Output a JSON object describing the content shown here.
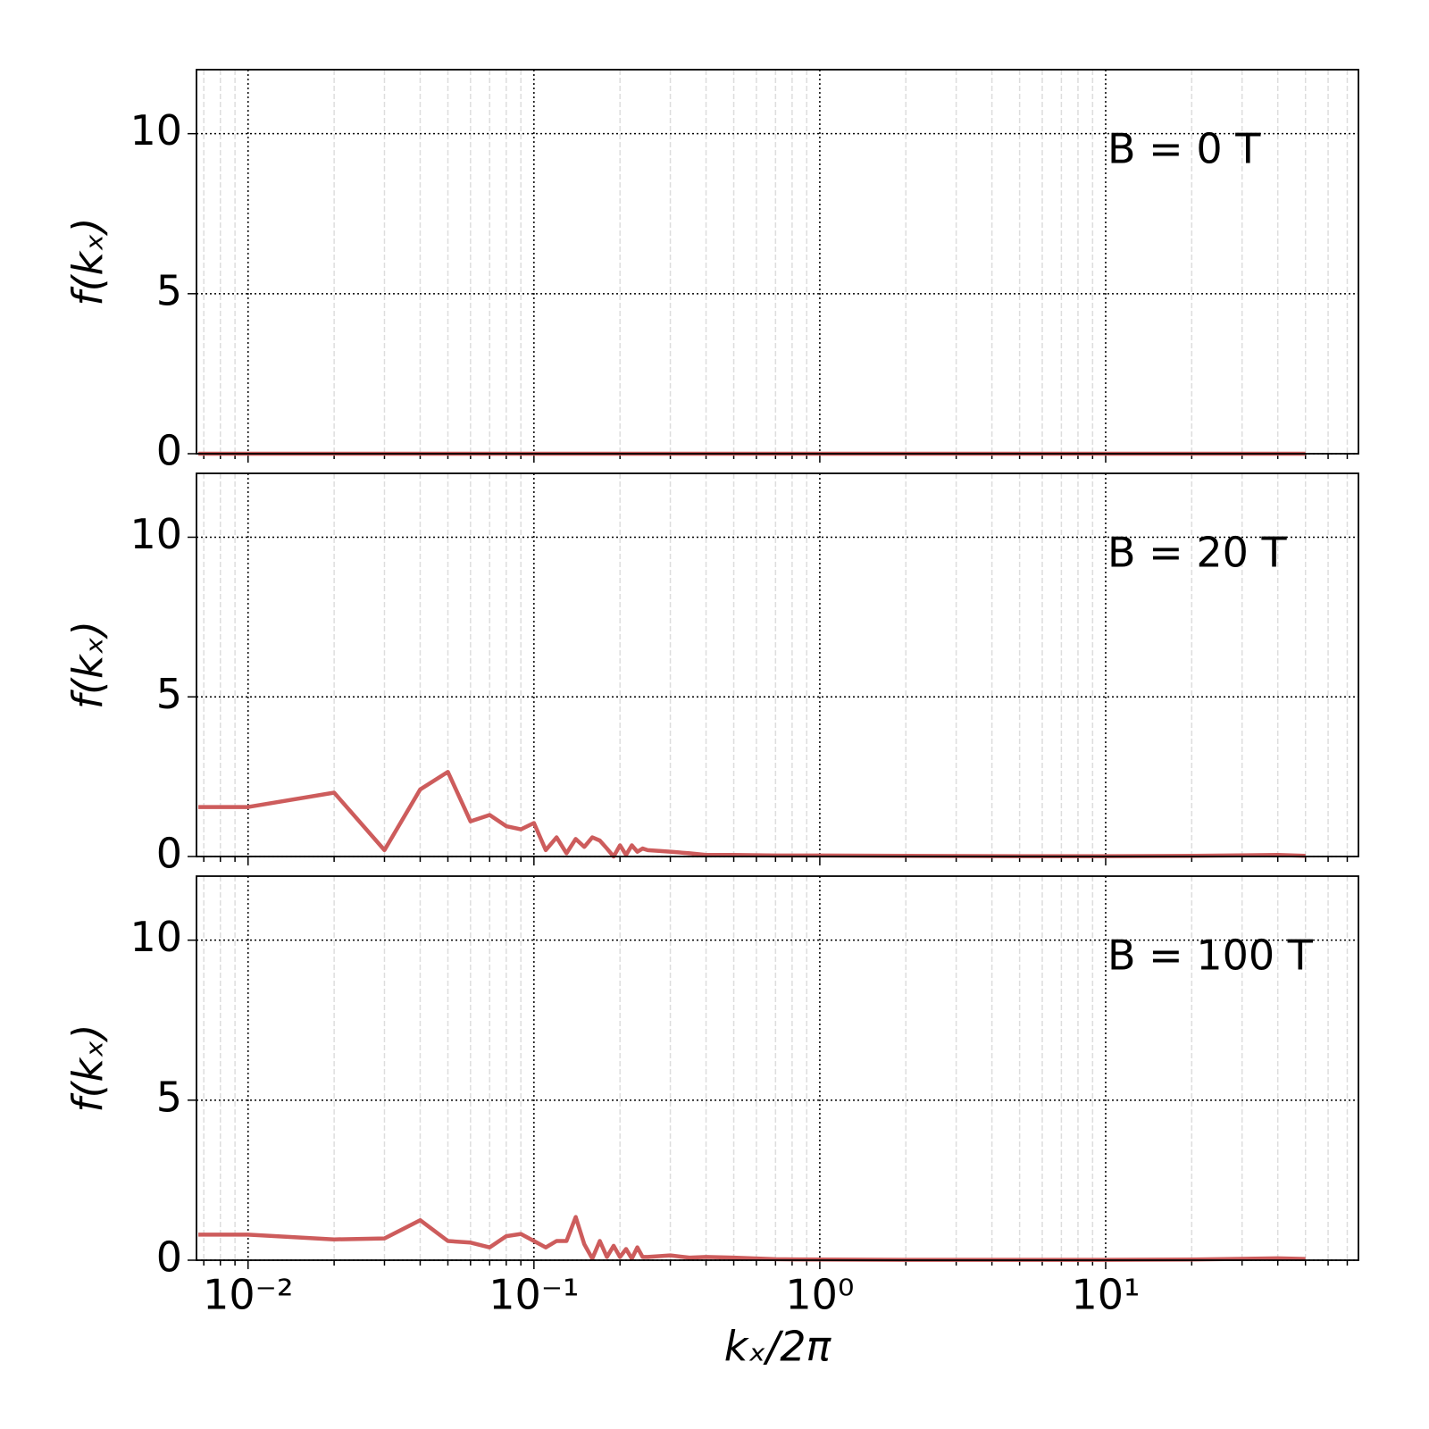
{
  "chart_data": [
    {
      "type": "line",
      "annotation": "B = 0 T",
      "ylabel": "f(kₓ)",
      "color": "#cd5c5c",
      "log_x": true,
      "grid": true,
      "minor_grid": true,
      "xlim": [
        0.0066,
        76.6
      ],
      "ylim": [
        0,
        12
      ],
      "yticks": [
        0,
        5,
        10
      ],
      "xticks": [
        0.01,
        0.1,
        1,
        10
      ],
      "x": [
        0.0067,
        0.01,
        0.02,
        0.03,
        0.04,
        0.05,
        0.06,
        0.07,
        0.08,
        0.09,
        0.1,
        0.11,
        0.12,
        0.13,
        0.14,
        0.15,
        0.16,
        0.17,
        0.18,
        0.19,
        0.2,
        0.21,
        0.22,
        0.23,
        0.24,
        0.25,
        0.3,
        0.35,
        0.4,
        0.5,
        0.7,
        1,
        2,
        5,
        10,
        20,
        40,
        50
      ],
      "values": [
        0,
        0,
        0,
        0,
        0,
        0,
        0,
        0,
        0,
        0,
        0,
        0,
        0,
        0,
        0,
        0,
        0,
        0,
        0,
        0,
        0,
        0,
        0,
        0,
        0,
        0,
        0,
        0,
        0,
        0,
        0,
        0,
        0,
        0,
        0,
        0,
        0,
        0
      ]
    },
    {
      "type": "line",
      "annotation": "B = 20 T",
      "ylabel": "f(kₓ)",
      "color": "#cd5c5c",
      "log_x": true,
      "grid": true,
      "minor_grid": true,
      "xlim": [
        0.0066,
        76.6
      ],
      "ylim": [
        0,
        12
      ],
      "yticks": [
        0,
        5,
        10
      ],
      "xticks": [
        0.01,
        0.1,
        1,
        10
      ],
      "x": [
        0.0067,
        0.01,
        0.02,
        0.03,
        0.04,
        0.05,
        0.06,
        0.07,
        0.08,
        0.09,
        0.1,
        0.11,
        0.12,
        0.13,
        0.14,
        0.15,
        0.16,
        0.17,
        0.18,
        0.19,
        0.2,
        0.21,
        0.22,
        0.23,
        0.24,
        0.25,
        0.3,
        0.35,
        0.4,
        0.5,
        0.7,
        1,
        2,
        5,
        10,
        20,
        40,
        50
      ],
      "values": [
        1.55,
        1.55,
        2.0,
        0.2,
        2.1,
        2.65,
        1.1,
        1.3,
        0.95,
        0.85,
        1.05,
        0.2,
        0.6,
        0.1,
        0.55,
        0.3,
        0.6,
        0.5,
        0.25,
        0.0,
        0.35,
        0.05,
        0.35,
        0.15,
        0.25,
        0.2,
        0.15,
        0.1,
        0.05,
        0.05,
        0.03,
        0.03,
        0.02,
        0.01,
        0.01,
        0.02,
        0.05,
        0.02
      ]
    },
    {
      "type": "line",
      "annotation": "B = 100 T",
      "ylabel": "f(kₓ)",
      "xlabel": "kₓ/2π",
      "color": "#cd5c5c",
      "log_x": true,
      "grid": true,
      "minor_grid": true,
      "xlim": [
        0.0066,
        76.6
      ],
      "ylim": [
        0,
        12
      ],
      "yticks": [
        0,
        5,
        10
      ],
      "xticks": [
        {
          "value": 0.01,
          "label": "10⁻²"
        },
        {
          "value": 0.1,
          "label": "10⁻¹"
        },
        {
          "value": 1,
          "label": "10⁰"
        },
        {
          "value": 10,
          "label": "10¹"
        }
      ],
      "x": [
        0.0067,
        0.01,
        0.02,
        0.03,
        0.04,
        0.05,
        0.06,
        0.07,
        0.08,
        0.09,
        0.1,
        0.11,
        0.12,
        0.13,
        0.14,
        0.15,
        0.16,
        0.17,
        0.18,
        0.19,
        0.2,
        0.21,
        0.22,
        0.23,
        0.24,
        0.25,
        0.3,
        0.35,
        0.4,
        0.5,
        0.7,
        1,
        2,
        5,
        10,
        20,
        40,
        50
      ],
      "values": [
        0.8,
        0.8,
        0.65,
        0.68,
        1.25,
        0.6,
        0.55,
        0.4,
        0.75,
        0.82,
        0.6,
        0.4,
        0.6,
        0.6,
        1.35,
        0.5,
        0.05,
        0.6,
        0.1,
        0.45,
        0.1,
        0.35,
        0.05,
        0.4,
        0.1,
        0.1,
        0.15,
        0.08,
        0.1,
        0.08,
        0.03,
        0.02,
        0.01,
        0.01,
        0.01,
        0.02,
        0.06,
        0.04
      ]
    }
  ]
}
